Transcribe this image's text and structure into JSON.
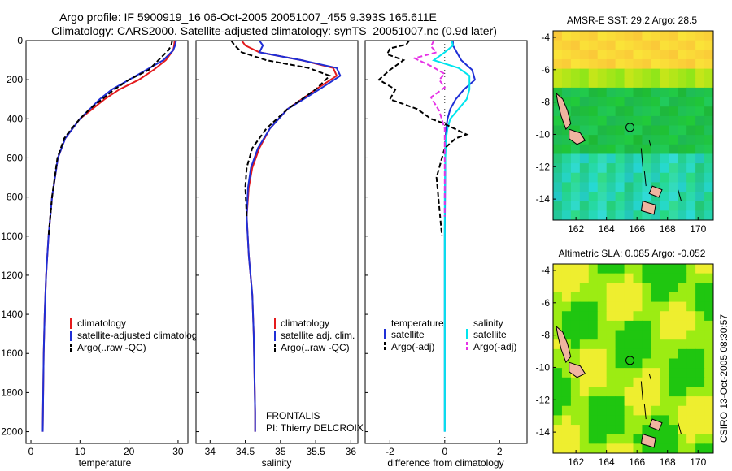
{
  "title_line1": "Argo profile: IF 5900919_16 06-Oct-2005 20051007_455 9.393S 165.611E",
  "title_line2": "Climatology: CARS2000. Satellite-adjusted climatology: synTS_20051007.nc (0.9d later)",
  "footer_right": "CSIRO 13-Oct-2005 08:30:57",
  "chart_data": [
    {
      "type": "line",
      "xlabel": "temperature",
      "xlim": [
        -1,
        32
      ],
      "ylim": [
        0,
        2060
      ],
      "x_ticks": [
        "0",
        "10",
        "20",
        "30"
      ],
      "y_ticks": [
        "0",
        "200",
        "400",
        "600",
        "800",
        "1000",
        "1200",
        "1400",
        "1600",
        "1800",
        "2000"
      ],
      "legend": [
        "climatology",
        "satellite-adjusted climatology",
        "Argo(..raw -QC)"
      ],
      "series": [
        {
          "name": "climatology",
          "color": "#e41a1c",
          "dash": "",
          "x": [
            29.3,
            29.2,
            29.0,
            27.5,
            25.0,
            22.0,
            18.0,
            15.0,
            12.5,
            10.0,
            8.5,
            7.0,
            5.5,
            4.3,
            3.6,
            3.1,
            2.8,
            2.6,
            2.5,
            2.4
          ],
          "y": [
            0,
            25,
            50,
            100,
            150,
            200,
            250,
            300,
            350,
            400,
            450,
            500,
            600,
            800,
            1000,
            1200,
            1400,
            1600,
            1800,
            2000
          ]
        },
        {
          "name": "satellite-adjusted climatology",
          "color": "#1f2fd6",
          "dash": "",
          "x": [
            29.6,
            29.4,
            29.0,
            27.0,
            23.5,
            20.0,
            16.5,
            14.0,
            12.0,
            10.0,
            8.5,
            7.0,
            5.5,
            4.3,
            3.6,
            3.1,
            2.8,
            2.6,
            2.5,
            2.4
          ],
          "y": [
            0,
            25,
            50,
            100,
            150,
            200,
            250,
            300,
            350,
            400,
            450,
            500,
            600,
            800,
            1000,
            1200,
            1400,
            1600,
            1800,
            2000
          ]
        },
        {
          "name": "Argo(..raw -QC)",
          "color": "#000000",
          "dash": "6,3",
          "x": [
            28.8,
            28.6,
            28.0,
            26.0,
            24.0,
            20.0,
            17.0,
            14.5,
            12.0,
            10.0,
            8.3,
            6.8,
            5.4,
            4.3,
            3.6
          ],
          "y": [
            0,
            25,
            50,
            100,
            150,
            200,
            250,
            300,
            350,
            400,
            450,
            500,
            600,
            800,
            1000
          ]
        }
      ]
    },
    {
      "type": "line",
      "xlabel": "salinity",
      "xlim": [
        33.8,
        36.1
      ],
      "ylim": [
        0,
        2060
      ],
      "x_ticks": [
        "34",
        "34.5",
        "35",
        "35.5",
        "36"
      ],
      "legend": [
        "climatology",
        "satellite adj. clim.",
        "Argo(..raw -QC)"
      ],
      "annotation": [
        "FRONTALIS",
        "PI: Thierry DELCROIX"
      ],
      "series": [
        {
          "name": "climatology",
          "color": "#e41a1c",
          "dash": "",
          "x": [
            34.45,
            34.5,
            34.7,
            35.3,
            35.75,
            35.8,
            35.5,
            35.1,
            34.85,
            34.7,
            34.6,
            34.55,
            34.52,
            34.55,
            34.6,
            34.62,
            34.63,
            34.64,
            34.64
          ],
          "y": [
            0,
            25,
            60,
            100,
            140,
            180,
            250,
            350,
            450,
            550,
            650,
            750,
            900,
            1100,
            1300,
            1500,
            1700,
            1900,
            2000
          ]
        },
        {
          "name": "satellite adj. clim.",
          "color": "#1f2fd6",
          "dash": "",
          "x": [
            34.7,
            34.75,
            34.7,
            35.3,
            35.8,
            35.85,
            35.55,
            35.1,
            34.85,
            34.68,
            34.58,
            34.54,
            34.52,
            34.55,
            34.6,
            34.62,
            34.63,
            34.64,
            34.64
          ],
          "y": [
            0,
            25,
            60,
            100,
            140,
            180,
            250,
            350,
            450,
            550,
            650,
            750,
            900,
            1100,
            1300,
            1500,
            1700,
            1900,
            2000
          ]
        },
        {
          "name": "Argo(..raw -QC)",
          "color": "#000000",
          "dash": "6,3",
          "x": [
            34.3,
            34.35,
            34.45,
            34.8,
            35.4,
            35.7,
            35.5,
            35.1,
            34.8,
            34.6,
            34.52,
            34.5,
            34.52
          ],
          "y": [
            0,
            25,
            60,
            100,
            140,
            180,
            250,
            350,
            450,
            550,
            650,
            750,
            900
          ]
        }
      ]
    },
    {
      "type": "line",
      "xlabel": "difference from climatology",
      "xlim": [
        -2.9,
        3.0
      ],
      "ylim": [
        0,
        2060
      ],
      "x_ticks": [
        "-2",
        "0",
        "2"
      ],
      "legend_left_title": "temperature",
      "legend_right_title": "salinity",
      "legend_left": [
        "satellite",
        "Argo(-adj)"
      ],
      "legend_right": [
        "satellite",
        "Argo(-adj)"
      ],
      "series": [
        {
          "name": "temperature satellite",
          "color": "#1f2fd6",
          "dash": "",
          "x": [
            0.3,
            0.3,
            0.4,
            0.6,
            1.0,
            1.1,
            0.7,
            0.4,
            0.2,
            0.1,
            0.05,
            0.03,
            0.02,
            0.01,
            0,
            0,
            0
          ],
          "y": [
            0,
            25,
            50,
            100,
            150,
            200,
            250,
            300,
            350,
            400,
            450,
            500,
            600,
            800,
            1000,
            1500,
            2000
          ]
        },
        {
          "name": "salinity satellite",
          "color": "#00e5ee",
          "dash": "",
          "x": [
            0.25,
            0.3,
            0.0,
            -0.4,
            0.5,
            0.9,
            0.9,
            0.8,
            0.5,
            0.2,
            0.1,
            0.05,
            0.02,
            0.0,
            0.0,
            0.0,
            0.0
          ],
          "y": [
            0,
            25,
            60,
            100,
            140,
            180,
            250,
            300,
            350,
            400,
            450,
            500,
            600,
            800,
            1000,
            1500,
            2000
          ]
        },
        {
          "name": "temperature Argo(-adj)",
          "color": "#000000",
          "dash": "6,3",
          "x": [
            -1.3,
            -1.4,
            -2.0,
            -2.1,
            -1.5,
            -2.0,
            -2.4,
            -1.8,
            -2.0,
            -1.0,
            -0.5,
            -0.1,
            0.2,
            0.5,
            0.8,
            0.4,
            0.0,
            -0.3,
            -0.1
          ],
          "y": [
            0,
            20,
            40,
            70,
            100,
            150,
            200,
            250,
            300,
            350,
            400,
            420,
            440,
            460,
            480,
            500,
            550,
            700,
            1000
          ]
        },
        {
          "name": "salinity Argo(-adj)",
          "color": "#e633e6",
          "dash": "6,3",
          "x": [
            -0.4,
            -0.5,
            -0.3,
            -1.1,
            -0.5,
            0.0,
            -0.2,
            0.0,
            -0.5,
            -0.2,
            0.0,
            0.0,
            0.0
          ],
          "y": [
            0,
            30,
            60,
            90,
            130,
            170,
            200,
            240,
            290,
            360,
            450,
            700,
            900
          ]
        }
      ]
    }
  ],
  "maps": [
    {
      "title": "AMSR-E SST: 29.2 Argo: 28.5",
      "x_ticks": [
        "162",
        "164",
        "166",
        "168",
        "170"
      ],
      "y_ticks": [
        "-4",
        "-6",
        "-8",
        "-10",
        "-12",
        "-14"
      ]
    },
    {
      "title": "Altimetric SLA: 0.085 Argo: -0.052",
      "x_ticks": [
        "162",
        "164",
        "166",
        "168",
        "170"
      ],
      "y_ticks": [
        "-4",
        "-6",
        "-8",
        "-10",
        "-12",
        "-14"
      ]
    }
  ]
}
